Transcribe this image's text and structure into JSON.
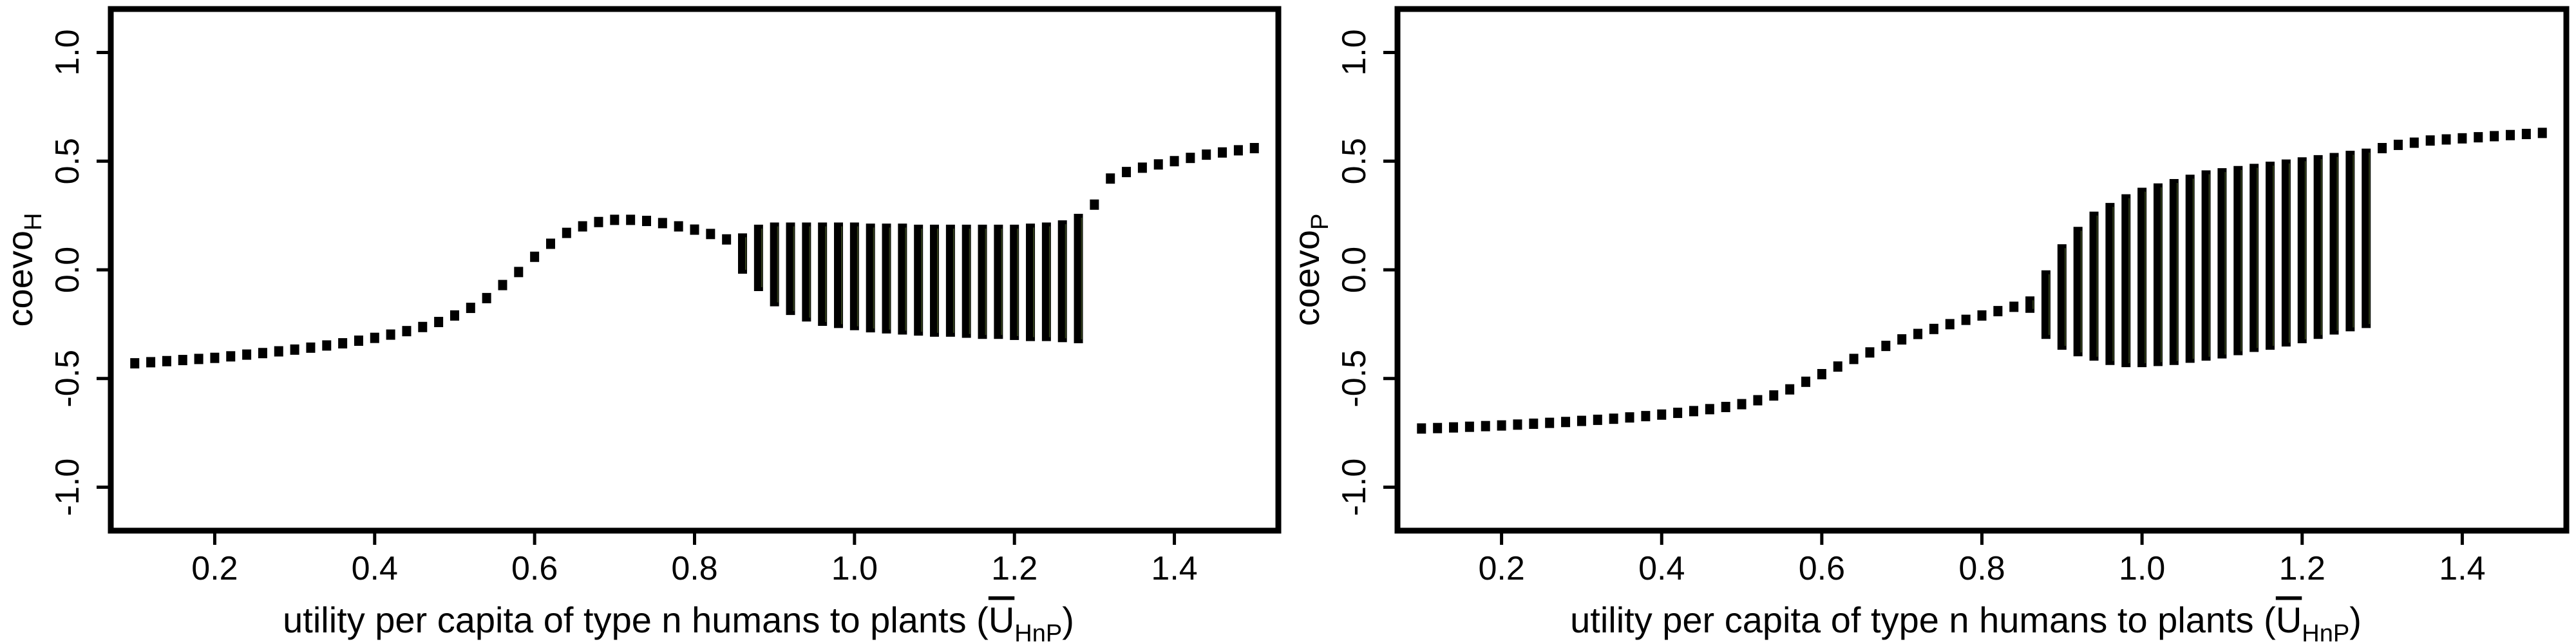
{
  "chart_data": [
    {
      "type": "scatter",
      "title": "",
      "xlabel_main": "utility per capita of type n humans to plants (",
      "xlabel_sym": "U",
      "xlabel_sub": "HnP",
      "xlabel_close": ")",
      "ylabel_main": "coevo",
      "ylabel_sub": "H",
      "xlim": [
        0.07,
        1.53
      ],
      "ylim": [
        -1.2,
        1.2
      ],
      "xticks": [
        0.2,
        0.4,
        0.6,
        0.8,
        1.0,
        1.2,
        1.4
      ],
      "xtick_labels": [
        "0.2",
        "0.4",
        "0.6",
        "0.8",
        "1.0",
        "1.2",
        "1.4"
      ],
      "yticks": [
        -1.0,
        -0.5,
        0.0,
        0.5,
        1.0
      ],
      "ytick_labels": [
        "-1.0",
        "-0.5",
        "0.0",
        "0.5",
        "1.0"
      ],
      "x_step": 0.02,
      "point_color": "#000000",
      "fixed_points": [
        [
          0.1,
          -0.43
        ],
        [
          0.12,
          -0.425
        ],
        [
          0.14,
          -0.42
        ],
        [
          0.16,
          -0.415
        ],
        [
          0.18,
          -0.41
        ],
        [
          0.2,
          -0.405
        ],
        [
          0.22,
          -0.398
        ],
        [
          0.24,
          -0.39
        ],
        [
          0.26,
          -0.383
        ],
        [
          0.28,
          -0.375
        ],
        [
          0.3,
          -0.367
        ],
        [
          0.32,
          -0.358
        ],
        [
          0.34,
          -0.348
        ],
        [
          0.36,
          -0.338
        ],
        [
          0.38,
          -0.326
        ],
        [
          0.4,
          -0.313
        ],
        [
          0.42,
          -0.298
        ],
        [
          0.44,
          -0.282
        ],
        [
          0.46,
          -0.263
        ],
        [
          0.48,
          -0.24
        ],
        [
          0.5,
          -0.21
        ],
        [
          0.52,
          -0.175
        ],
        [
          0.54,
          -0.13
        ],
        [
          0.56,
          -0.07
        ],
        [
          0.58,
          -0.01
        ],
        [
          0.6,
          0.06
        ],
        [
          0.62,
          0.12
        ],
        [
          0.64,
          0.17
        ],
        [
          0.66,
          0.2
        ],
        [
          0.68,
          0.22
        ],
        [
          0.7,
          0.23
        ],
        [
          0.72,
          0.23
        ],
        [
          0.74,
          0.225
        ],
        [
          0.76,
          0.215
        ],
        [
          0.78,
          0.2
        ],
        [
          0.8,
          0.185
        ],
        [
          0.82,
          0.165
        ],
        [
          0.84,
          0.14
        ],
        [
          0.86,
          0.12
        ],
        [
          1.3,
          0.3
        ],
        [
          1.32,
          0.42
        ],
        [
          1.34,
          0.45
        ],
        [
          1.36,
          0.47
        ],
        [
          1.38,
          0.485
        ],
        [
          1.4,
          0.5
        ],
        [
          1.42,
          0.515
        ],
        [
          1.44,
          0.53
        ],
        [
          1.46,
          0.54
        ],
        [
          1.48,
          0.55
        ],
        [
          1.5,
          0.56
        ]
      ],
      "oscillation_ranges": [
        [
          0.86,
          0.0,
          0.15
        ],
        [
          0.88,
          -0.08,
          0.19
        ],
        [
          0.9,
          -0.15,
          0.2
        ],
        [
          0.92,
          -0.19,
          0.2
        ],
        [
          0.94,
          -0.22,
          0.2
        ],
        [
          0.96,
          -0.24,
          0.2
        ],
        [
          0.98,
          -0.25,
          0.2
        ],
        [
          1.0,
          -0.26,
          0.2
        ],
        [
          1.02,
          -0.27,
          0.195
        ],
        [
          1.04,
          -0.275,
          0.195
        ],
        [
          1.06,
          -0.28,
          0.195
        ],
        [
          1.08,
          -0.285,
          0.19
        ],
        [
          1.1,
          -0.29,
          0.19
        ],
        [
          1.12,
          -0.29,
          0.19
        ],
        [
          1.14,
          -0.295,
          0.19
        ],
        [
          1.16,
          -0.3,
          0.19
        ],
        [
          1.18,
          -0.3,
          0.19
        ],
        [
          1.2,
          -0.305,
          0.19
        ],
        [
          1.22,
          -0.31,
          0.195
        ],
        [
          1.24,
          -0.31,
          0.2
        ],
        [
          1.26,
          -0.315,
          0.21
        ],
        [
          1.28,
          -0.32,
          0.24
        ]
      ]
    },
    {
      "type": "scatter",
      "title": "",
      "xlabel_main": "utility per capita of type n humans to plants (",
      "xlabel_sym": "U",
      "xlabel_sub": "HnP",
      "xlabel_close": ")",
      "ylabel_main": "coevo",
      "ylabel_sub": "P",
      "xlim": [
        0.07,
        1.53
      ],
      "ylim": [
        -1.2,
        1.2
      ],
      "xticks": [
        0.2,
        0.4,
        0.6,
        0.8,
        1.0,
        1.2,
        1.4
      ],
      "xtick_labels": [
        "0.2",
        "0.4",
        "0.6",
        "0.8",
        "1.0",
        "1.2",
        "1.4"
      ],
      "yticks": [
        -1.0,
        -0.5,
        0.0,
        0.5,
        1.0
      ],
      "ytick_labels": [
        "-1.0",
        "-0.5",
        "0.0",
        "0.5",
        "1.0"
      ],
      "x_step": 0.02,
      "point_color": "#000000",
      "fixed_points": [
        [
          0.1,
          -0.73
        ],
        [
          0.12,
          -0.728
        ],
        [
          0.14,
          -0.725
        ],
        [
          0.16,
          -0.722
        ],
        [
          0.18,
          -0.719
        ],
        [
          0.2,
          -0.716
        ],
        [
          0.22,
          -0.712
        ],
        [
          0.24,
          -0.708
        ],
        [
          0.26,
          -0.704
        ],
        [
          0.28,
          -0.7
        ],
        [
          0.3,
          -0.695
        ],
        [
          0.32,
          -0.69
        ],
        [
          0.34,
          -0.685
        ],
        [
          0.36,
          -0.679
        ],
        [
          0.38,
          -0.673
        ],
        [
          0.4,
          -0.666
        ],
        [
          0.42,
          -0.658
        ],
        [
          0.44,
          -0.65
        ],
        [
          0.46,
          -0.641
        ],
        [
          0.48,
          -0.631
        ],
        [
          0.5,
          -0.618
        ],
        [
          0.52,
          -0.6
        ],
        [
          0.54,
          -0.578
        ],
        [
          0.56,
          -0.55
        ],
        [
          0.58,
          -0.515
        ],
        [
          0.6,
          -0.48
        ],
        [
          0.62,
          -0.445
        ],
        [
          0.64,
          -0.41
        ],
        [
          0.66,
          -0.38
        ],
        [
          0.68,
          -0.35
        ],
        [
          0.7,
          -0.32
        ],
        [
          0.72,
          -0.295
        ],
        [
          0.74,
          -0.272
        ],
        [
          0.76,
          -0.25
        ],
        [
          0.78,
          -0.23
        ],
        [
          0.8,
          -0.21
        ],
        [
          0.82,
          -0.19
        ],
        [
          0.84,
          -0.17
        ],
        [
          1.3,
          0.56
        ],
        [
          1.32,
          0.575
        ],
        [
          1.34,
          0.585
        ],
        [
          1.36,
          0.595
        ],
        [
          1.38,
          0.6
        ],
        [
          1.4,
          0.605
        ],
        [
          1.42,
          0.61
        ],
        [
          1.44,
          0.615
        ],
        [
          1.46,
          0.62
        ],
        [
          1.48,
          0.625
        ],
        [
          1.5,
          0.63
        ]
      ],
      "oscillation_ranges": [
        [
          0.86,
          -0.18,
          -0.14
        ],
        [
          0.88,
          -0.3,
          -0.02
        ],
        [
          0.9,
          -0.35,
          0.1
        ],
        [
          0.92,
          -0.38,
          0.18
        ],
        [
          0.94,
          -0.4,
          0.25
        ],
        [
          0.96,
          -0.42,
          0.29
        ],
        [
          0.98,
          -0.43,
          0.33
        ],
        [
          1.0,
          -0.43,
          0.36
        ],
        [
          1.02,
          -0.425,
          0.38
        ],
        [
          1.04,
          -0.42,
          0.4
        ],
        [
          1.06,
          -0.41,
          0.42
        ],
        [
          1.08,
          -0.4,
          0.44
        ],
        [
          1.1,
          -0.39,
          0.45
        ],
        [
          1.12,
          -0.375,
          0.46
        ],
        [
          1.14,
          -0.36,
          0.47
        ],
        [
          1.16,
          -0.35,
          0.48
        ],
        [
          1.18,
          -0.335,
          0.49
        ],
        [
          1.2,
          -0.32,
          0.5
        ],
        [
          1.22,
          -0.3,
          0.51
        ],
        [
          1.24,
          -0.28,
          0.52
        ],
        [
          1.26,
          -0.265,
          0.53
        ],
        [
          1.28,
          -0.25,
          0.54
        ]
      ]
    }
  ]
}
